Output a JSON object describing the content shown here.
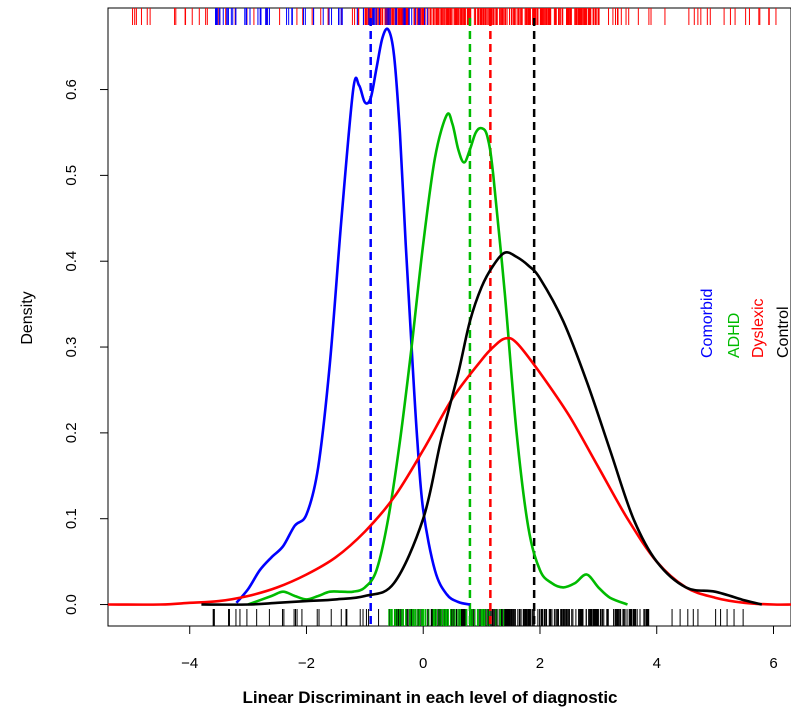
{
  "chart_data": {
    "type": "line",
    "title": "",
    "xlabel": "Linear Discriminant in each level of diagnostic",
    "ylabel": "Density",
    "xlim": [
      -5.4,
      6.3
    ],
    "ylim": [
      -0.025,
      0.695
    ],
    "x_ticks": [
      -4,
      -2,
      0,
      2,
      4,
      6
    ],
    "x_tick_labels": [
      "−4",
      "−2",
      "0",
      "2",
      "4",
      "6"
    ],
    "y_ticks": [
      0.0,
      0.1,
      0.2,
      0.3,
      0.4,
      0.5,
      0.6
    ],
    "y_tick_labels": [
      "0.0",
      "0.1",
      "0.2",
      "0.3",
      "0.4",
      "0.5",
      "0.6"
    ],
    "legend": {
      "placement": "right, rotated vertical"
    },
    "series": [
      {
        "name": "Comorbid",
        "color": "#0000ff",
        "mean": -0.9,
        "x": [
          -3.2,
          -3.0,
          -2.8,
          -2.6,
          -2.4,
          -2.2,
          -2.0,
          -1.8,
          -1.6,
          -1.4,
          -1.2,
          -1.1,
          -1.0,
          -0.9,
          -0.8,
          -0.7,
          -0.6,
          -0.5,
          -0.4,
          -0.3,
          -0.2,
          -0.1,
          0.0,
          0.2,
          0.4,
          0.6,
          0.8
        ],
        "y": [
          0.002,
          0.018,
          0.04,
          0.055,
          0.068,
          0.092,
          0.105,
          0.16,
          0.28,
          0.45,
          0.6,
          0.605,
          0.585,
          0.59,
          0.625,
          0.66,
          0.67,
          0.64,
          0.55,
          0.42,
          0.3,
          0.19,
          0.11,
          0.04,
          0.012,
          0.003,
          0.0
        ]
      },
      {
        "name": "ADHD",
        "color": "#00bb00",
        "mean": 0.8,
        "x": [
          -3.0,
          -2.6,
          -2.4,
          -2.2,
          -2.0,
          -1.8,
          -1.6,
          -1.4,
          -1.2,
          -1.0,
          -0.8,
          -0.6,
          -0.4,
          -0.2,
          0.0,
          0.2,
          0.4,
          0.5,
          0.6,
          0.7,
          0.8,
          0.9,
          1.0,
          1.1,
          1.2,
          1.4,
          1.6,
          1.8,
          2.0,
          2.2,
          2.4,
          2.6,
          2.8,
          3.0,
          3.2,
          3.5
        ],
        "y": [
          0.0,
          0.01,
          0.015,
          0.01,
          0.006,
          0.01,
          0.015,
          0.015,
          0.015,
          0.02,
          0.04,
          0.1,
          0.19,
          0.3,
          0.42,
          0.52,
          0.57,
          0.56,
          0.53,
          0.515,
          0.53,
          0.55,
          0.555,
          0.545,
          0.5,
          0.36,
          0.2,
          0.09,
          0.04,
          0.025,
          0.02,
          0.025,
          0.035,
          0.02,
          0.008,
          0.0
        ]
      },
      {
        "name": "Dyslexic",
        "color": "#ff0000",
        "mean": 1.15,
        "x": [
          -5.4,
          -4.5,
          -4.0,
          -3.5,
          -3.0,
          -2.5,
          -2.0,
          -1.5,
          -1.0,
          -0.5,
          0.0,
          0.5,
          1.0,
          1.2,
          1.4,
          1.6,
          2.0,
          2.5,
          3.0,
          3.5,
          4.0,
          4.5,
          5.0,
          5.5,
          6.0,
          6.3
        ],
        "y": [
          0.0,
          0.0,
          0.002,
          0.004,
          0.01,
          0.02,
          0.035,
          0.055,
          0.085,
          0.125,
          0.18,
          0.24,
          0.285,
          0.3,
          0.31,
          0.305,
          0.27,
          0.22,
          0.16,
          0.1,
          0.05,
          0.02,
          0.008,
          0.002,
          0.0,
          0.0
        ]
      },
      {
        "name": "Control",
        "color": "#000000",
        "mean": 1.9,
        "x": [
          -3.8,
          -3.0,
          -2.5,
          -2.0,
          -1.5,
          -1.0,
          -0.5,
          0.0,
          0.3,
          0.6,
          0.8,
          1.0,
          1.2,
          1.4,
          1.6,
          1.8,
          2.0,
          2.4,
          2.8,
          3.2,
          3.6,
          4.0,
          4.5,
          5.0,
          5.5,
          5.8
        ],
        "y": [
          0.0,
          0.0,
          0.002,
          0.004,
          0.006,
          0.01,
          0.025,
          0.1,
          0.19,
          0.27,
          0.33,
          0.37,
          0.395,
          0.41,
          0.405,
          0.395,
          0.38,
          0.33,
          0.26,
          0.18,
          0.1,
          0.05,
          0.02,
          0.015,
          0.005,
          0.0
        ]
      }
    ],
    "rugs": {
      "top": {
        "color": "#ff0000",
        "color2": "#0000ff",
        "range": [
          -5.0,
          6.1
        ],
        "dense_range": [
          -1.0,
          3.0
        ],
        "blue_range": [
          -3.6,
          0.1
        ]
      },
      "bottom": {
        "color": "#000000",
        "green_color": "#00bb00",
        "range": [
          -3.6,
          5.6
        ],
        "dense_range": [
          -0.5,
          3.9
        ]
      }
    }
  }
}
